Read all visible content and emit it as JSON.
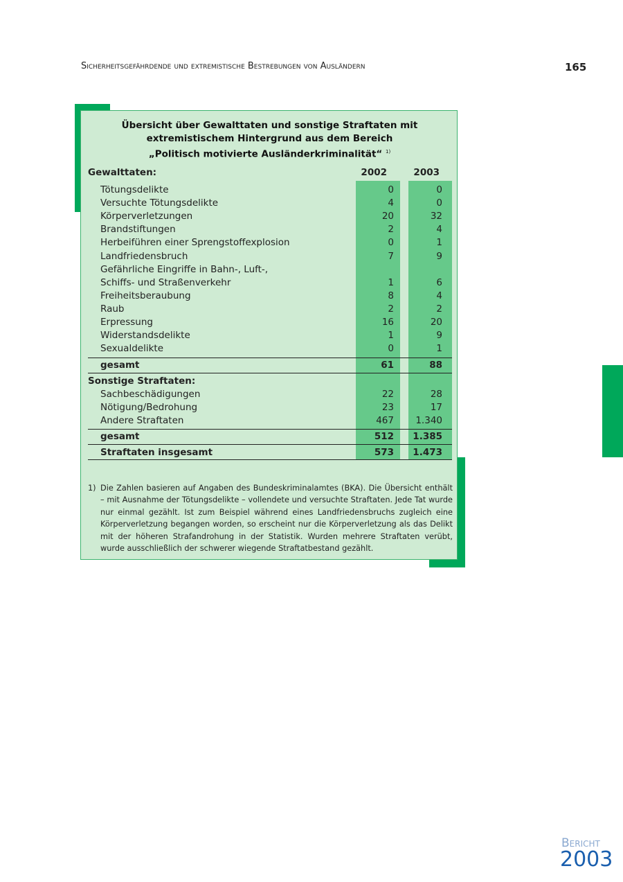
{
  "header": {
    "title": "Sicherheitsgefährdende und extremistische Bestrebungen von Ausländern",
    "page_number": "165"
  },
  "table": {
    "title_lines": [
      "Übersicht über Gewalttaten und sonstige Straftaten mit",
      "extremistischem Hintergrund aus dem Bereich",
      "„Politisch motivierte Ausländerkriminalität“"
    ],
    "title_footnote_ref": "1)",
    "section1": "Gewalttaten:",
    "years": [
      "2002",
      "2003"
    ],
    "rows1": [
      [
        "Tötungsdelikte",
        "0",
        "0"
      ],
      [
        "Versuchte Tötungsdelikte",
        "4",
        "0"
      ],
      [
        "Körperverletzungen",
        "20",
        "32"
      ],
      [
        "Brandstiftungen",
        "2",
        "4"
      ],
      [
        "Herbeiführen einer Sprengstoffexplosion",
        "0",
        "1"
      ],
      [
        "Landfriedensbruch",
        "7",
        "9"
      ],
      [
        "Gefährliche Eingriffe in Bahn-, Luft-,",
        "",
        ""
      ],
      [
        "Schiffs- und Straßenverkehr",
        "1",
        "6"
      ],
      [
        "Freiheitsberaubung",
        "8",
        "4"
      ],
      [
        "Raub",
        "2",
        "2"
      ],
      [
        "Erpressung",
        "16",
        "20"
      ],
      [
        "Widerstandsdelikte",
        "1",
        "9"
      ],
      [
        "Sexualdelikte",
        "0",
        "1"
      ]
    ],
    "total1": [
      "gesamt",
      "61",
      "88"
    ],
    "section2": "Sonstige Straftaten:",
    "rows2": [
      [
        "Sachbeschädigungen",
        "22",
        "28"
      ],
      [
        "Nötigung/Bedrohung",
        "23",
        "17"
      ],
      [
        "Andere Straftaten",
        "467",
        "1.340"
      ]
    ],
    "total2": [
      "gesamt",
      "512",
      "1.385"
    ],
    "grand_total": [
      "Straftaten insgesamt",
      "573",
      "1.473"
    ],
    "footnote_num": "1)",
    "footnote": "Die Zahlen basieren auf Angaben des Bundeskriminalamtes (BKA). Die Übersicht enthält – mit Ausnahme der Tötungsdelikte – vollendete und versuchte Straftaten. Jede Tat wurde nur einmal gezählt. Ist zum Beispiel während eines Landfriedensbruchs zugleich eine Körperverletzung begangen worden, so erscheint nur die Körperverletzung als das Delikt mit der höheren Strafandrohung in der Statistik. Wurden mehrere Straftaten verübt, wurde ausschließlich der schwerer wiegende Straftatbestand gezählt."
  },
  "logo": {
    "word": "Bericht",
    "year": "2003"
  },
  "colors": {
    "accent": "#00a85a",
    "box": "#cfebd3",
    "column": "#66c98a",
    "logo": "#1a5fae"
  }
}
